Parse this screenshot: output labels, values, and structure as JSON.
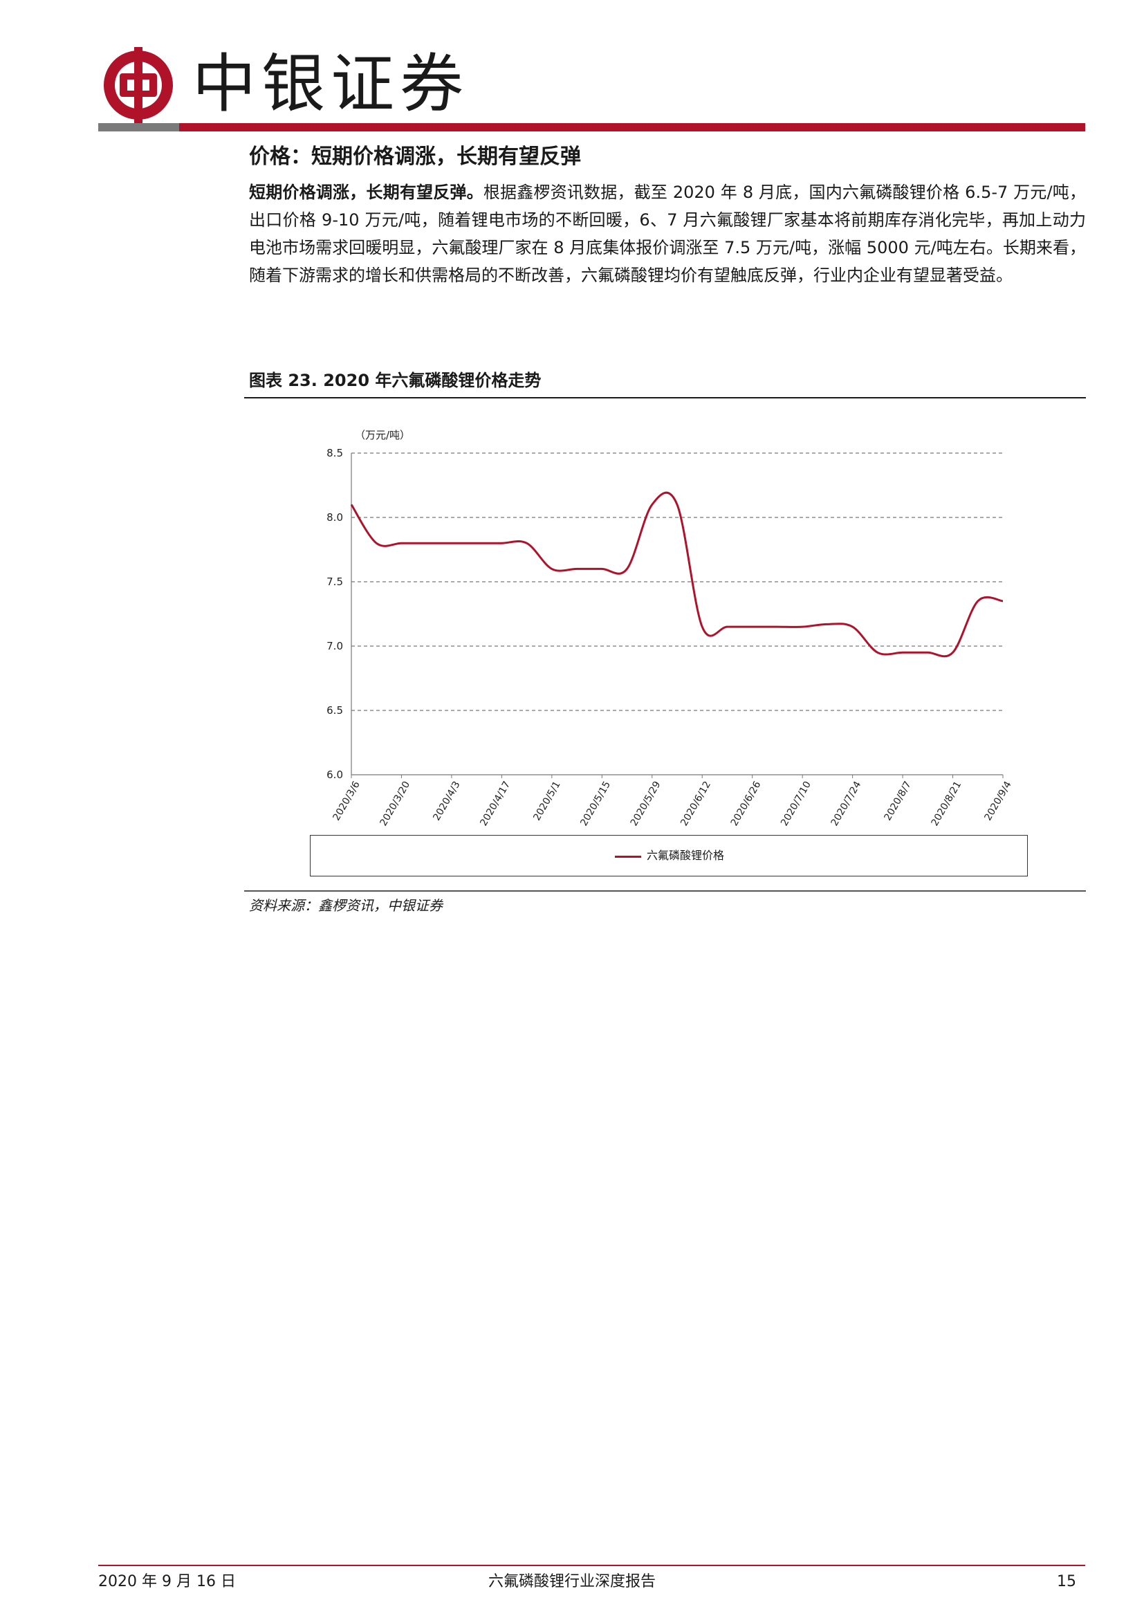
{
  "header": {
    "brand": "中银证券"
  },
  "section": {
    "title": "价格：短期价格调涨，长期有望反弹",
    "para_lead": "短期价格调涨，长期有望反弹。",
    "para_body": "根据鑫椤资讯数据，截至 2020 年 8 月底，国内六氟磷酸锂价格 6.5-7 万元/吨，出口价格 9-10 万元/吨，随着锂电市场的不断回暖，6、7 月六氟酸锂厂家基本将前期库存消化完毕，再加上动力电池市场需求回暖明显，六氟酸理厂家在 8 月底集体报价调涨至 7.5 万元/吨，涨幅 5000 元/吨左右。长期来看，随着下游需求的增长和供需格局的不断改善，六氟磷酸锂均价有望触底反弹，行业内企业有望显著受益。"
  },
  "figure": {
    "title": "图表 23. 2020 年六氟磷酸锂价格走势",
    "source": "资料来源：鑫椤资讯，中银证券"
  },
  "chart_data": {
    "type": "line",
    "title": "",
    "xlabel": "",
    "ylabel": "（万元/吨）",
    "ylim": [
      6.0,
      8.5
    ],
    "yticks": [
      "8.5",
      "8.0",
      "7.5",
      "7.0",
      "6.5",
      "6.0"
    ],
    "grid": true,
    "legend_position": "bottom",
    "categories": [
      "2020/3/6",
      "2020/3/20",
      "2020/4/3",
      "2020/4/17",
      "2020/5/1",
      "2020/5/15",
      "2020/5/29",
      "2020/6/12",
      "2020/6/26",
      "2020/7/10",
      "2020/7/24",
      "2020/8/7",
      "2020/8/21",
      "2020/9/4"
    ],
    "series": [
      {
        "name": "六氟磷酸锂价格",
        "color": "#b0122a",
        "points": [
          [
            "2020/3/6",
            8.1
          ],
          [
            "2020/3/13",
            7.8
          ],
          [
            "2020/3/20",
            7.8
          ],
          [
            "2020/3/27",
            7.8
          ],
          [
            "2020/4/3",
            7.8
          ],
          [
            "2020/4/10",
            7.8
          ],
          [
            "2020/4/17",
            7.8
          ],
          [
            "2020/4/24",
            7.8
          ],
          [
            "2020/5/1",
            7.6
          ],
          [
            "2020/5/8",
            7.6
          ],
          [
            "2020/5/15",
            7.6
          ],
          [
            "2020/5/22",
            7.6
          ],
          [
            "2020/5/29",
            8.1
          ],
          [
            "2020/6/5",
            8.1
          ],
          [
            "2020/6/12",
            7.15
          ],
          [
            "2020/6/19",
            7.15
          ],
          [
            "2020/6/26",
            7.15
          ],
          [
            "2020/7/3",
            7.15
          ],
          [
            "2020/7/10",
            7.15
          ],
          [
            "2020/7/17",
            7.17
          ],
          [
            "2020/7/24",
            7.15
          ],
          [
            "2020/7/31",
            6.95
          ],
          [
            "2020/8/7",
            6.95
          ],
          [
            "2020/8/14",
            6.95
          ],
          [
            "2020/8/21",
            6.95
          ],
          [
            "2020/8/28",
            7.35
          ],
          [
            "2020/9/4",
            7.35
          ]
        ]
      }
    ]
  },
  "footer": {
    "date": "2020 年 9 月 16 日",
    "report": "六氟磷酸锂行业深度报告",
    "page": "15"
  }
}
